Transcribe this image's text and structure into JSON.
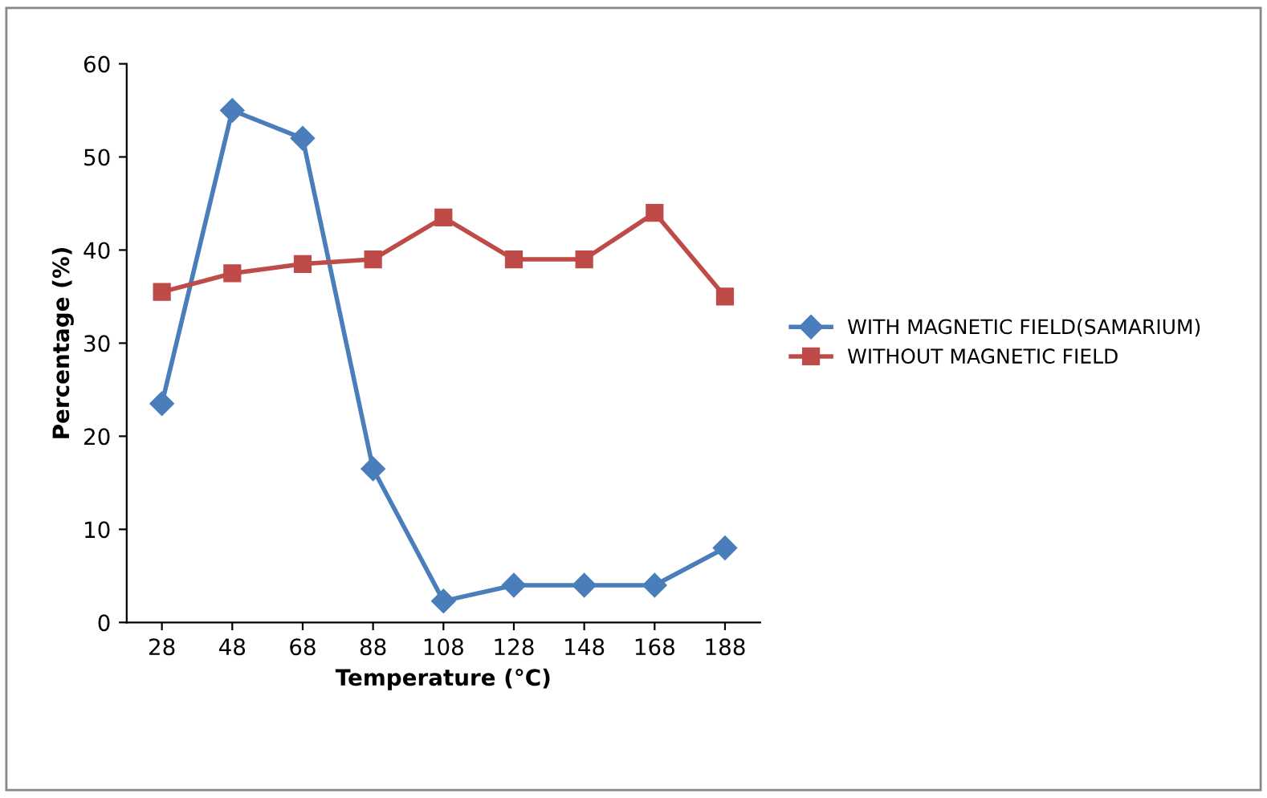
{
  "chart_data": {
    "type": "line",
    "xlabel": "Temperature (°C)",
    "ylabel": "Percentage (%)",
    "categories": [
      "28",
      "48",
      "68",
      "88",
      "108",
      "128",
      "148",
      "168",
      "188"
    ],
    "ylim": [
      0,
      60
    ],
    "yticks": [
      0,
      10,
      20,
      30,
      40,
      50,
      60
    ],
    "grid": false,
    "legend": "right",
    "series": [
      {
        "name": "WITH MAGNETIC FIELD(SAMARIUM)",
        "color": "#4a7ebb",
        "marker": "diamond",
        "values": [
          23.5,
          55,
          52,
          16.5,
          2.3,
          4,
          4,
          4,
          8
        ]
      },
      {
        "name": "WITHOUT MAGNETIC FIELD",
        "color": "#be4b48",
        "marker": "square",
        "values": [
          35.5,
          37.5,
          38.5,
          39,
          43.5,
          39,
          39,
          44,
          35
        ]
      }
    ]
  }
}
